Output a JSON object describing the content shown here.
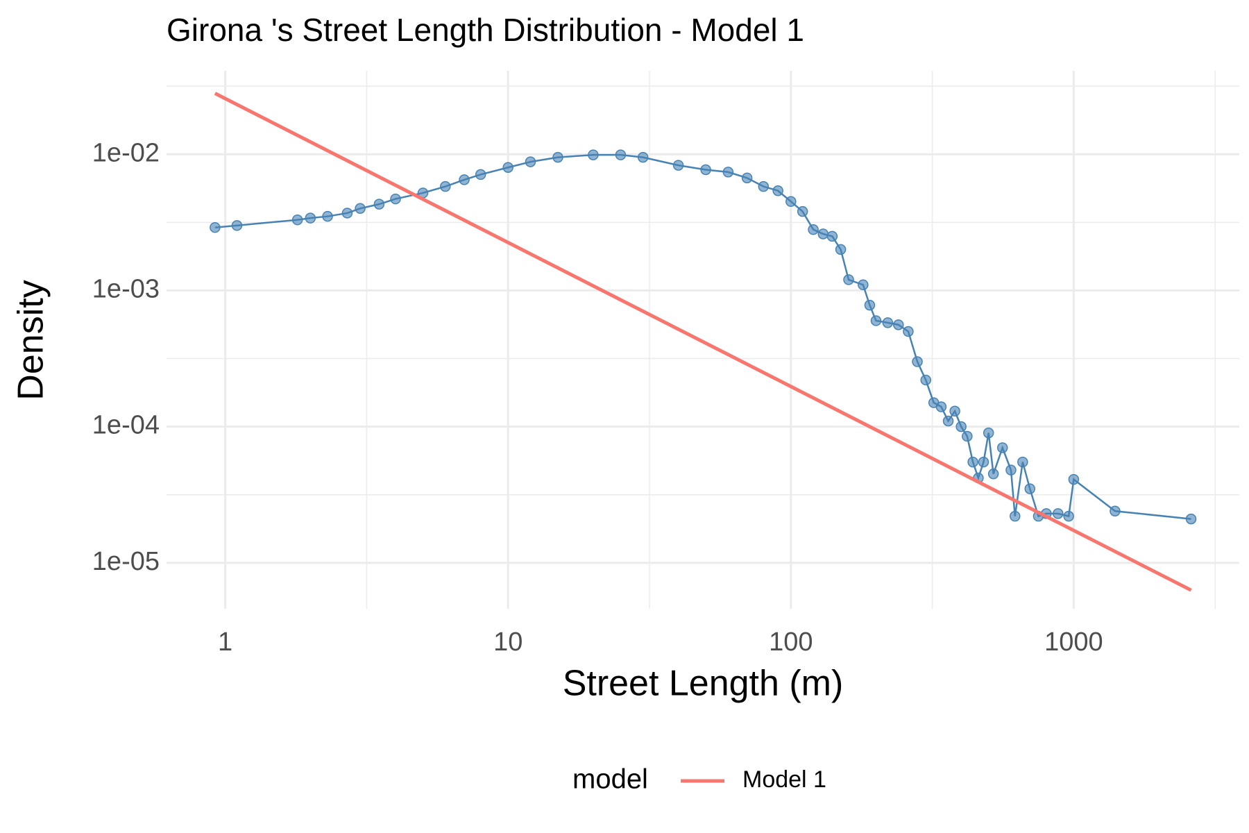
{
  "chart_data": {
    "type": "line",
    "title": "Girona 's Street Length Distribution - Model 1",
    "x_label": "Street Length (m)",
    "y_label": "Density",
    "log_x": true,
    "log_y": true,
    "grid": true,
    "xlim": [
      0.62,
      3850
    ],
    "ylim": [
      4.6e-06,
      0.041
    ],
    "xticks": [
      1,
      10,
      100,
      1000
    ],
    "yticks": [
      {
        "value": 0.01,
        "label": "1e-02"
      },
      {
        "value": 0.001,
        "label": "1e-03"
      },
      {
        "value": 0.0001,
        "label": "1e-04"
      },
      {
        "value": 1e-05,
        "label": "1e-05"
      }
    ],
    "xminor": [
      3.162,
      31.62,
      316.2,
      3162
    ],
    "yminor": [
      0.03162,
      0.003162,
      0.0003162,
      3.162e-05
    ],
    "legend_title": "model",
    "legend_position": "bottom",
    "series": [
      {
        "color": "#4682b4",
        "points": true,
        "x": [
          0.92,
          1.1,
          1.8,
          2.0,
          2.3,
          2.7,
          3,
          3.5,
          4,
          5,
          6,
          7,
          8,
          10,
          12,
          15,
          20,
          25,
          30,
          40,
          50,
          60,
          70,
          80,
          90,
          100,
          110,
          120,
          130,
          140,
          150,
          160,
          180,
          190,
          200,
          220,
          240,
          260,
          280,
          300,
          320,
          340,
          360,
          380,
          400,
          420,
          440,
          460,
          480,
          500,
          520,
          560,
          600,
          620,
          660,
          700,
          750,
          800,
          880,
          960,
          1000,
          1400,
          2600
        ],
        "values": [
          0.0029,
          0.003,
          0.0033,
          0.0034,
          0.0035,
          0.0037,
          0.004,
          0.0043,
          0.0047,
          0.0052,
          0.0058,
          0.0065,
          0.0071,
          0.008,
          0.0088,
          0.0095,
          0.0099,
          0.0099,
          0.0095,
          0.0083,
          0.0077,
          0.0074,
          0.0067,
          0.0058,
          0.0054,
          0.0045,
          0.0038,
          0.0028,
          0.0026,
          0.0025,
          0.002,
          0.0012,
          0.0011,
          0.00078,
          0.0006,
          0.00058,
          0.00056,
          0.0005,
          0.0003,
          0.00022,
          0.00015,
          0.00014,
          0.00011,
          0.00013,
          0.0001,
          8.5e-05,
          5.5e-05,
          4.2e-05,
          5.5e-05,
          9e-05,
          4.5e-05,
          7e-05,
          4.8e-05,
          2.2e-05,
          5.5e-05,
          3.5e-05,
          2.2e-05,
          2.3e-05,
          2.3e-05,
          2.2e-05,
          4.1e-05,
          2.4e-05,
          2.1e-05
        ]
      },
      {
        "name": "Model 1",
        "color": "#f8766d",
        "points": false,
        "x": [
          0.92,
          2600
        ],
        "values": [
          0.028,
          6.3e-06
        ]
      }
    ]
  }
}
